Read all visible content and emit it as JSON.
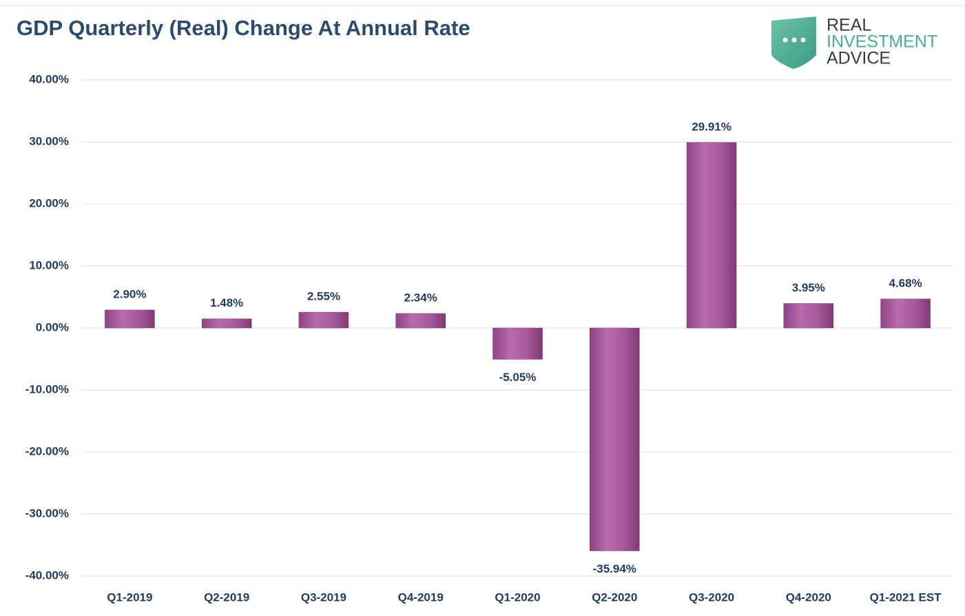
{
  "chart_data": {
    "type": "bar",
    "title": "GDP Quarterly (Real) Change At Annual Rate",
    "logo": [
      "REAL",
      "INVESTMENT",
      "ADVICE"
    ],
    "categories": [
      "Q1-2019",
      "Q2-2019",
      "Q3-2019",
      "Q4-2019",
      "Q1-2020",
      "Q2-2020",
      "Q3-2020",
      "Q4-2020",
      "Q1-2021 EST"
    ],
    "values": [
      2.9,
      1.48,
      2.55,
      2.34,
      -5.05,
      -35.94,
      29.91,
      3.95,
      4.68
    ],
    "value_labels": [
      "2.90%",
      "1.48%",
      "2.55%",
      "2.34%",
      "-5.05%",
      "-35.94%",
      "29.91%",
      "3.95%",
      "4.68%"
    ],
    "color": "#a9589f",
    "ylim": [
      -40,
      40
    ],
    "yticks": [
      {
        "value": -40,
        "label": "-40.00%"
      },
      {
        "value": -30,
        "label": "-30.00%"
      },
      {
        "value": -20,
        "label": "-20.00%"
      },
      {
        "value": -10,
        "label": "-10.00%"
      },
      {
        "value": 0,
        "label": "0.00%"
      },
      {
        "value": 10,
        "label": "10.00%"
      },
      {
        "value": 20,
        "label": "20.00%"
      },
      {
        "value": 30,
        "label": "30.00%"
      },
      {
        "value": 40,
        "label": "40.00%"
      }
    ],
    "grid": true
  }
}
